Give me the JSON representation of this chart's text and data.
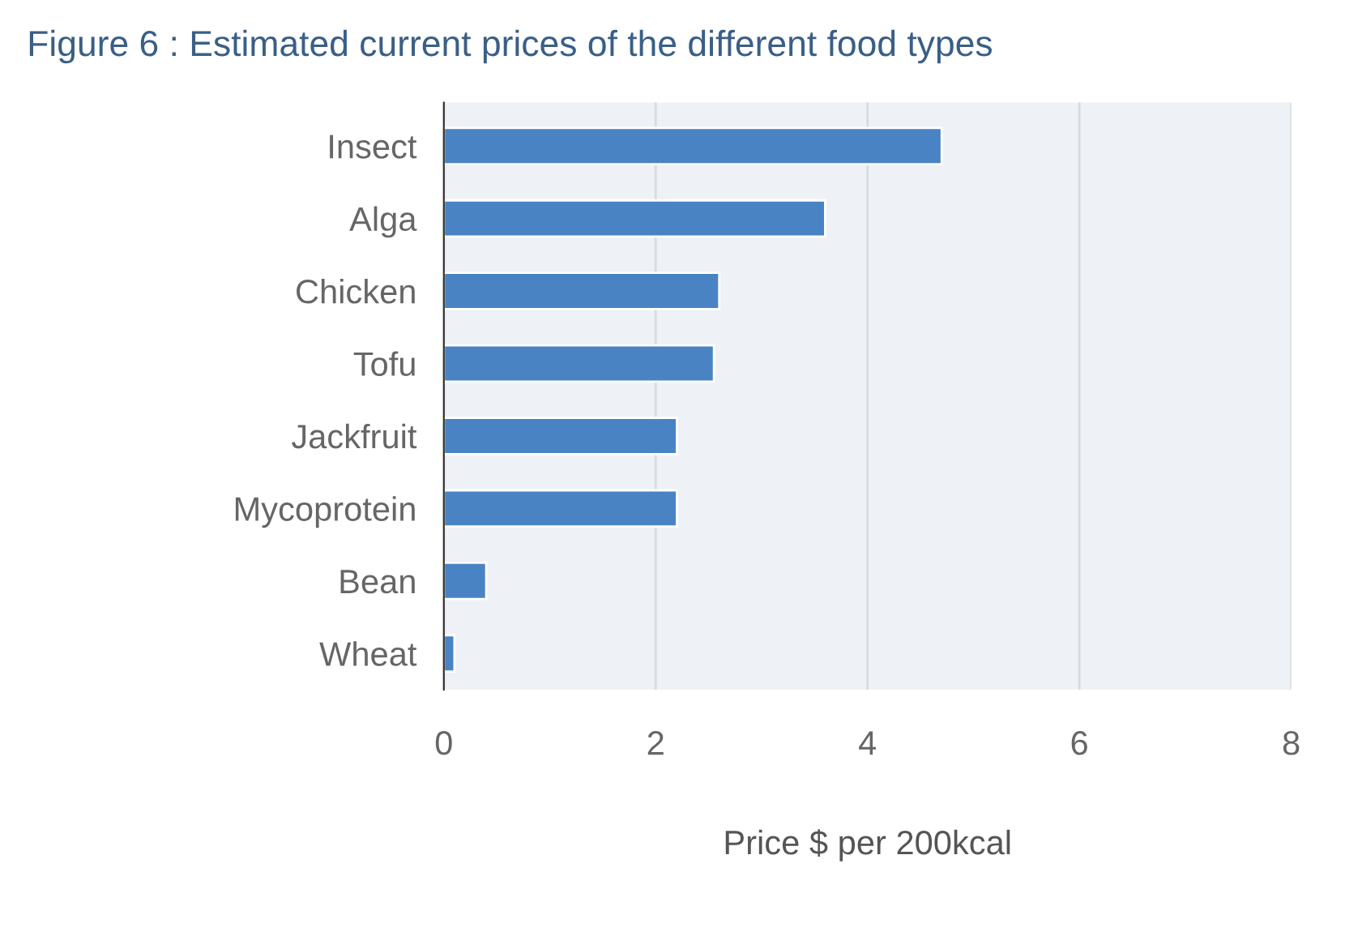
{
  "chart_data": {
    "type": "bar",
    "orientation": "horizontal",
    "title": "Figure 6 : Estimated current prices of the different food types",
    "categories": [
      "Insect",
      "Alga",
      "Chicken",
      "Tofu",
      "Jackfruit",
      "Mycoprotein",
      "Bean",
      "Wheat"
    ],
    "values": [
      4.7,
      3.6,
      2.6,
      2.55,
      2.2,
      2.2,
      0.4,
      0.1
    ],
    "color": "#4a83c3",
    "xlim": [
      0,
      8
    ],
    "xticks": [
      0,
      2,
      4,
      6,
      8
    ],
    "grid": "x",
    "xlabel": "Price $ per 200kcal"
  }
}
